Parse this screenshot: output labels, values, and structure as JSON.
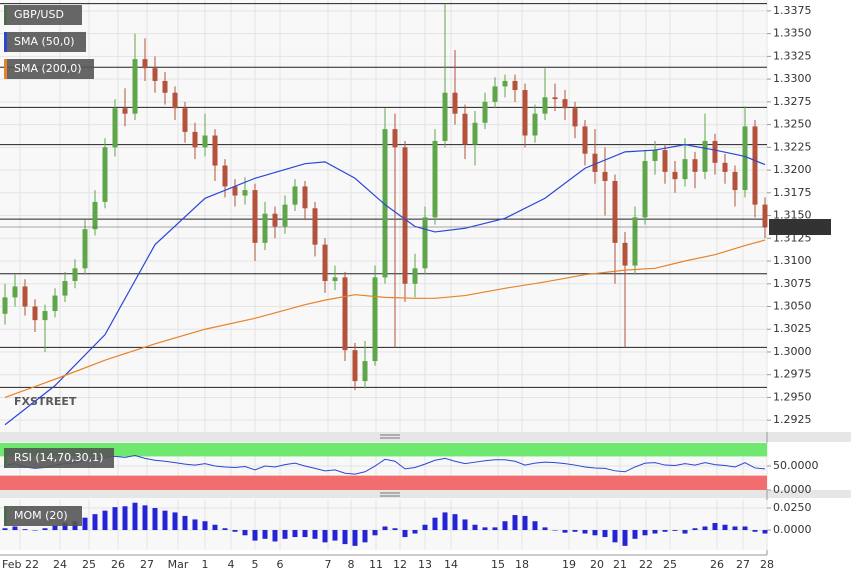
{
  "chart_data": [
    {
      "type": "candlestick",
      "title": "GBP/USD",
      "open": [
        1.3042,
        1.306,
        1.3072,
        1.305,
        1.3035,
        1.3045,
        1.3062,
        1.3078,
        1.3092,
        1.3135,
        1.3165,
        1.3225,
        1.3268,
        1.3262,
        1.3322,
        1.3312,
        1.3298,
        1.3285,
        1.3268,
        1.3242,
        1.3225,
        1.3238,
        1.3205,
        1.3182,
        1.3172,
        1.3178,
        1.312,
        1.3152,
        1.3138,
        1.3162,
        1.3182,
        1.3158,
        1.3118,
        1.3078,
        1.3082,
        1.3002,
        1.2968,
        1.299,
        1.3082,
        1.3245,
        1.3225,
        1.3075,
        1.3092,
        1.3148,
        1.3232,
        1.3285,
        1.3262,
        1.3228,
        1.3252,
        1.3275,
        1.3292,
        1.3298,
        1.3288,
        1.3238,
        1.3262,
        1.328,
        1.3278,
        1.3268,
        1.3248,
        1.3218,
        1.3198,
        1.3188,
        1.312,
        1.3095,
        1.3148,
        1.321,
        1.3222,
        1.3198,
        1.319,
        1.3212,
        1.3198,
        1.3232,
        1.3208,
        1.3198,
        1.3178,
        1.3248,
        1.3162
      ],
      "high": [
        1.3075,
        1.3085,
        1.308,
        1.3058,
        1.3052,
        1.307,
        1.3088,
        1.3102,
        1.3145,
        1.3178,
        1.3235,
        1.3278,
        1.329,
        1.335,
        1.3345,
        1.3325,
        1.3308,
        1.3292,
        1.3275,
        1.3252,
        1.3262,
        1.3245,
        1.3212,
        1.319,
        1.3192,
        1.3185,
        1.3165,
        1.316,
        1.3172,
        1.319,
        1.3188,
        1.3165,
        1.3125,
        1.3095,
        1.3088,
        1.301,
        1.3012,
        1.3095,
        1.3268,
        1.3262,
        1.3232,
        1.3108,
        1.316,
        1.3245,
        1.3383,
        1.3332,
        1.3272,
        1.3265,
        1.3285,
        1.3302,
        1.3305,
        1.3305,
        1.3295,
        1.3272,
        1.3312,
        1.3295,
        1.3288,
        1.3275,
        1.3255,
        1.3245,
        1.3225,
        1.3195,
        1.3132,
        1.316,
        1.3222,
        1.3232,
        1.3228,
        1.321,
        1.3235,
        1.322,
        1.3262,
        1.324,
        1.3218,
        1.3205,
        1.327,
        1.3255,
        1.317
      ],
      "low": [
        1.303,
        1.305,
        1.304,
        1.3022,
        1.3,
        1.3038,
        1.3055,
        1.307,
        1.3085,
        1.3128,
        1.3158,
        1.3215,
        1.3248,
        1.3255,
        1.3298,
        1.3285,
        1.3272,
        1.3255,
        1.323,
        1.3212,
        1.3215,
        1.3188,
        1.317,
        1.316,
        1.3162,
        1.31,
        1.3112,
        1.3125,
        1.313,
        1.3155,
        1.3145,
        1.3105,
        1.3065,
        1.3068,
        1.299,
        1.2958,
        1.296,
        1.2985,
        1.3075,
        1.3005,
        1.3055,
        1.306,
        1.3085,
        1.314,
        1.3225,
        1.325,
        1.3212,
        1.3205,
        1.3245,
        1.3268,
        1.328,
        1.3275,
        1.3225,
        1.323,
        1.3255,
        1.3265,
        1.3255,
        1.3235,
        1.3205,
        1.3185,
        1.315,
        1.3075,
        1.3005,
        1.3085,
        1.314,
        1.3195,
        1.3185,
        1.3175,
        1.3182,
        1.318,
        1.319,
        1.3195,
        1.3185,
        1.316,
        1.317,
        1.3148,
        1.3125
      ],
      "close": [
        1.306,
        1.3072,
        1.305,
        1.3035,
        1.3045,
        1.3062,
        1.3078,
        1.3092,
        1.3135,
        1.3165,
        1.3225,
        1.3268,
        1.3262,
        1.3322,
        1.3312,
        1.3298,
        1.3285,
        1.3268,
        1.3242,
        1.3225,
        1.3238,
        1.3205,
        1.3182,
        1.3172,
        1.3178,
        1.312,
        1.3152,
        1.3138,
        1.3162,
        1.3182,
        1.3158,
        1.3118,
        1.3078,
        1.3082,
        1.3002,
        1.2968,
        1.299,
        1.3082,
        1.3245,
        1.3225,
        1.3075,
        1.3092,
        1.3148,
        1.3232,
        1.3285,
        1.3262,
        1.3228,
        1.3252,
        1.3275,
        1.3292,
        1.3298,
        1.3288,
        1.3238,
        1.3262,
        1.328,
        1.3278,
        1.3268,
        1.3248,
        1.3218,
        1.3198,
        1.3188,
        1.312,
        1.3095,
        1.3148,
        1.321,
        1.3222,
        1.3198,
        1.319,
        1.3212,
        1.3198,
        1.3232,
        1.3208,
        1.3198,
        1.3178,
        1.3248,
        1.3162,
        1.3137
      ],
      "color_up": "#5fa64a",
      "color_down": "#b5523b",
      "series": [
        {
          "name": "SMA (50,0)",
          "color": "#2a47d6",
          "x": [
            0,
            5,
            10,
            15,
            20,
            25,
            30,
            32,
            35,
            38,
            41,
            43,
            46,
            50,
            54,
            58,
            62,
            65,
            68,
            71,
            74,
            76
          ],
          "values": [
            1.292,
            1.2963,
            1.3019,
            1.3118,
            1.3169,
            1.3191,
            1.3207,
            1.3209,
            1.3191,
            1.3162,
            1.3138,
            1.3132,
            1.3136,
            1.3147,
            1.3169,
            1.3202,
            1.322,
            1.3222,
            1.3228,
            1.3222,
            1.3215,
            1.3206
          ]
        },
        {
          "name": "SMA (200,0)",
          "color": "#e8822a",
          "x": [
            0,
            5,
            10,
            15,
            20,
            25,
            30,
            32,
            35,
            38,
            41,
            43,
            46,
            50,
            54,
            58,
            62,
            65,
            68,
            71,
            74,
            76
          ],
          "values": [
            1.295,
            1.297,
            1.2991,
            1.3009,
            1.3025,
            1.3037,
            1.3052,
            1.3057,
            1.3063,
            1.306,
            1.3059,
            1.3059,
            1.3062,
            1.307,
            1.3077,
            1.3085,
            1.309,
            1.3092,
            1.31,
            1.3107,
            1.3117,
            1.3123
          ]
        }
      ],
      "levels": [
        1.3383,
        1.3313,
        1.3269,
        1.3228,
        1.3146,
        1.3086,
        1.3005,
        1.2961
      ],
      "last_price": 1.31374,
      "ylim": [
        1.2912,
        1.3387
      ],
      "yticks": [
        1.3375,
        {
          "value": 1.335,
          "label": "1.3350"
        },
        1.3325,
        {
          "value": 1.33,
          "label": "1.3300"
        },
        1.3275,
        {
          "value": 1.325,
          "label": "1.3250"
        },
        1.3225,
        {
          "value": 1.32,
          "label": "1.3200"
        },
        1.3175,
        {
          "value": 1.315,
          "label": "1.3150"
        },
        1.3125,
        {
          "value": 1.31,
          "label": "1.3100"
        },
        1.3075,
        {
          "value": 1.305,
          "label": "1.3050"
        },
        1.3025,
        {
          "value": 1.3,
          "label": "1.3000"
        },
        1.2975,
        {
          "value": 1.295,
          "label": "1.2950"
        },
        1.2925
      ],
      "x_labels": [
        "Feb 22",
        "24",
        "25",
        "26",
        "27",
        "Mar",
        "1",
        "4",
        "5",
        "6",
        "7",
        "8",
        "11",
        "12",
        "13",
        "14",
        "15",
        "18",
        "19",
        "20",
        "21",
        "22",
        "25",
        "26",
        "27",
        "28"
      ],
      "watermark": "FXSTREET"
    },
    {
      "type": "line",
      "title": "RSI (14,70,30,1)",
      "color": "#2a47d6",
      "values": [
        52,
        55,
        48,
        45,
        47,
        52,
        55,
        57,
        62,
        64,
        68,
        70,
        68,
        72,
        66,
        62,
        60,
        57,
        54,
        52,
        55,
        50,
        48,
        47,
        49,
        42,
        50,
        48,
        53,
        56,
        50,
        45,
        40,
        42,
        35,
        33,
        38,
        50,
        64,
        60,
        44,
        47,
        54,
        62,
        66,
        60,
        55,
        58,
        61,
        63,
        63,
        60,
        52,
        56,
        58,
        57,
        55,
        52,
        48,
        46,
        45,
        40,
        38,
        48,
        56,
        57,
        52,
        51,
        55,
        52,
        57,
        53,
        51,
        48,
        57,
        46,
        44
      ],
      "overbought": 70,
      "oversold": 30,
      "overbought_color": "#6fe86f",
      "oversold_color": "#f26d6d",
      "ylim": [
        0,
        98
      ],
      "yticks": [
        {
          "value": 50,
          "label": "50.0000"
        },
        {
          "value": 0,
          "label": "0.0000"
        }
      ]
    },
    {
      "type": "bar",
      "title": "MOM (20)",
      "color": "#2424d4",
      "values": [
        0.002,
        0.004,
        0.001,
        0.0,
        0.002,
        0.005,
        0.008,
        0.01,
        0.014,
        0.018,
        0.022,
        0.026,
        0.027,
        0.031,
        0.028,
        0.025,
        0.022,
        0.02,
        0.016,
        0.012,
        0.01,
        0.006,
        0.002,
        -0.002,
        -0.006,
        -0.012,
        -0.01,
        -0.013,
        -0.01,
        -0.008,
        -0.008,
        -0.01,
        -0.014,
        -0.012,
        -0.016,
        -0.018,
        -0.014,
        -0.006,
        0.004,
        0.002,
        -0.008,
        -0.004,
        0.006,
        0.014,
        0.02,
        0.018,
        0.012,
        0.006,
        0.003,
        0.003,
        0.01,
        0.017,
        0.016,
        0.01,
        0.003,
        0.0,
        -0.003,
        -0.002,
        -0.004,
        -0.006,
        -0.008,
        -0.014,
        -0.018,
        -0.01,
        -0.006,
        -0.004,
        -0.002,
        -0.001,
        -0.004,
        0.002,
        0.004,
        0.008,
        0.006,
        0.004,
        0.004,
        -0.002,
        -0.004
      ],
      "ylim": [
        -0.0227,
        0.0341
      ],
      "yticks": [
        {
          "value": 0.025,
          "label": "0.0250"
        },
        {
          "value": 0,
          "label": "0.0000"
        }
      ]
    }
  ]
}
